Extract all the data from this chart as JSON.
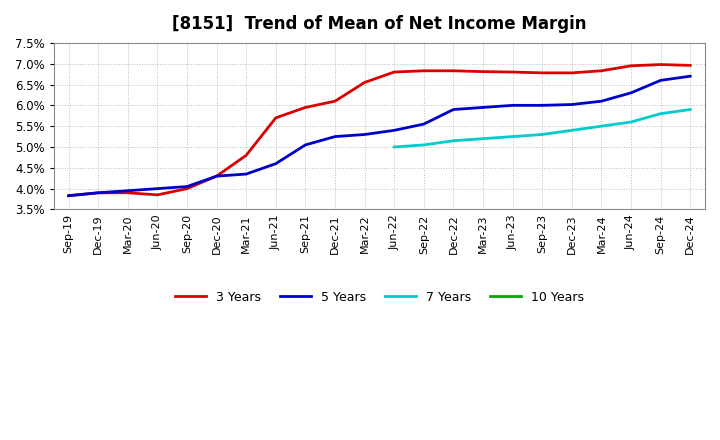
{
  "title": "[8151]  Trend of Mean of Net Income Margin",
  "ylim": [
    0.035,
    0.075
  ],
  "yticks": [
    0.035,
    0.04,
    0.045,
    0.05,
    0.055,
    0.06,
    0.065,
    0.07,
    0.075
  ],
  "background_color": "#ffffff",
  "grid_color": "#aaaaaa",
  "series": {
    "3 Years": {
      "color": "#dd0000",
      "x_idx": [
        0,
        1,
        2,
        3,
        4,
        5,
        6,
        7,
        8,
        9,
        10,
        11,
        12,
        13,
        14,
        15,
        16,
        17,
        18,
        19,
        20,
        21
      ],
      "y": [
        0.0383,
        0.039,
        0.039,
        0.0385,
        0.04,
        0.043,
        0.048,
        0.057,
        0.0595,
        0.061,
        0.0655,
        0.068,
        0.0683,
        0.0683,
        0.0681,
        0.068,
        0.0678,
        0.0678,
        0.0683,
        0.0695,
        0.0698,
        0.0696
      ]
    },
    "5 Years": {
      "color": "#0000cc",
      "x_idx": [
        0,
        1,
        2,
        3,
        4,
        5,
        6,
        7,
        8,
        9,
        10,
        11,
        12,
        13,
        14,
        15,
        16,
        17,
        18,
        19,
        20,
        21
      ],
      "y": [
        0.0383,
        0.039,
        0.0395,
        0.04,
        0.0405,
        0.043,
        0.0435,
        0.046,
        0.0505,
        0.0525,
        0.053,
        0.054,
        0.0555,
        0.059,
        0.0595,
        0.06,
        0.06,
        0.0602,
        0.061,
        0.063,
        0.066,
        0.067
      ]
    },
    "7 Years": {
      "color": "#00cccc",
      "x_idx": [
        11,
        12,
        13,
        14,
        15,
        16,
        17,
        18,
        19,
        20,
        21
      ],
      "y": [
        0.05,
        0.0505,
        0.0515,
        0.052,
        0.0525,
        0.053,
        0.054,
        0.055,
        0.056,
        0.058,
        0.059
      ]
    },
    "10 Years": {
      "color": "#00aa00",
      "x_idx": [],
      "y": []
    }
  },
  "x_tick_labels": [
    "Sep-19",
    "Dec-19",
    "Mar-20",
    "Jun-20",
    "Sep-20",
    "Dec-20",
    "Mar-21",
    "Jun-21",
    "Sep-21",
    "Dec-21",
    "Mar-22",
    "Jun-22",
    "Sep-22",
    "Dec-22",
    "Mar-23",
    "Jun-23",
    "Sep-23",
    "Dec-23",
    "Mar-24",
    "Jun-24",
    "Sep-24",
    "Dec-24"
  ],
  "legend_order": [
    "3 Years",
    "5 Years",
    "7 Years",
    "10 Years"
  ]
}
